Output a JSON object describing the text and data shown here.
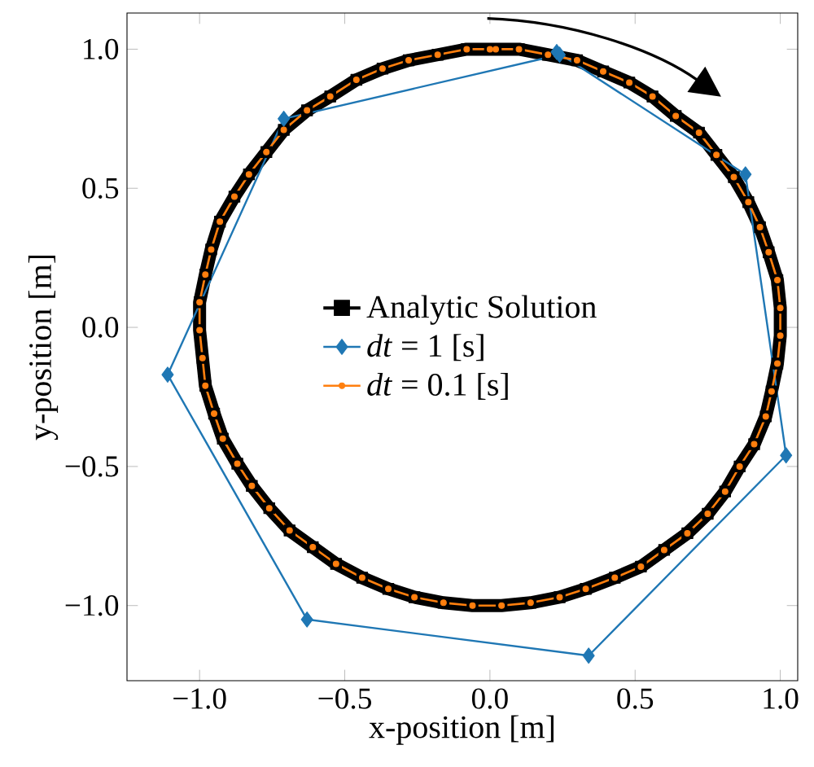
{
  "chart_data": {
    "type": "line",
    "xlabel": "x-position [m]",
    "ylabel": "y-position [m]",
    "xlim": [
      -1.25,
      1.06
    ],
    "ylim": [
      -1.27,
      1.13
    ],
    "xticks": [
      {
        "value": -1.0,
        "label": "−1.0"
      },
      {
        "value": -0.5,
        "label": "−0.5"
      },
      {
        "value": 0.0,
        "label": "0.0"
      },
      {
        "value": 0.5,
        "label": "0.5"
      },
      {
        "value": 1.0,
        "label": "1.0"
      }
    ],
    "yticks": [
      {
        "value": -1.0,
        "label": "−1.0"
      },
      {
        "value": -0.5,
        "label": "−0.5"
      },
      {
        "value": 0.0,
        "label": "0.0"
      },
      {
        "value": 0.5,
        "label": "0.5"
      },
      {
        "value": 1.0,
        "label": "1.0"
      }
    ],
    "grid": false,
    "legend": "left",
    "series": [
      {
        "name": "Analytic Solution",
        "color": "#000000",
        "marker": "square",
        "x": [
          0.0,
          0.1,
          0.2,
          0.3,
          0.39,
          0.48,
          0.56,
          0.64,
          0.72,
          0.78,
          0.84,
          0.89,
          0.93,
          0.96,
          0.99,
          1.0,
          1.0,
          0.99,
          0.97,
          0.95,
          0.91,
          0.86,
          0.81,
          0.75,
          0.68,
          0.6,
          0.52,
          0.43,
          0.33,
          0.24,
          0.14,
          0.04,
          -0.06,
          -0.16,
          -0.26,
          -0.35,
          -0.44,
          -0.53,
          -0.61,
          -0.69,
          -0.76,
          -0.82,
          -0.87,
          -0.92,
          -0.95,
          -0.98,
          -0.99,
          -1.0,
          -1.0,
          -0.98,
          -0.96,
          -0.93,
          -0.88,
          -0.83,
          -0.77,
          -0.71,
          -0.63,
          -0.55,
          -0.46,
          -0.37,
          -0.28,
          -0.18,
          -0.08,
          0.02
        ],
        "values": [
          1.0,
          1.0,
          0.98,
          0.96,
          0.92,
          0.88,
          0.83,
          0.76,
          0.7,
          0.62,
          0.54,
          0.45,
          0.36,
          0.27,
          0.17,
          0.07,
          -0.03,
          -0.13,
          -0.23,
          -0.32,
          -0.42,
          -0.5,
          -0.59,
          -0.67,
          -0.74,
          -0.8,
          -0.86,
          -0.9,
          -0.94,
          -0.97,
          -0.99,
          -1.0,
          -1.0,
          -0.99,
          -0.97,
          -0.94,
          -0.9,
          -0.85,
          -0.79,
          -0.73,
          -0.65,
          -0.57,
          -0.49,
          -0.4,
          -0.31,
          -0.21,
          -0.11,
          -0.01,
          0.09,
          0.19,
          0.28,
          0.38,
          0.47,
          0.55,
          0.63,
          0.71,
          0.78,
          0.83,
          0.89,
          0.93,
          0.96,
          0.98,
          1.0,
          1.0
        ]
      },
      {
        "name": "*dt* = 1 [s]",
        "color": "#1f77b4",
        "marker": "diamond",
        "x": [
          0.23,
          0.88,
          1.02,
          0.34,
          -0.63,
          -1.11,
          -0.71,
          0.24
        ],
        "values": [
          0.99,
          0.55,
          -0.46,
          -1.18,
          -1.05,
          -0.17,
          0.75,
          0.98
        ]
      },
      {
        "name": "*dt* = 0.1 [s]",
        "color": "#ff7f0e",
        "marker": "circle",
        "x": [
          0.0,
          0.1,
          0.2,
          0.3,
          0.39,
          0.48,
          0.56,
          0.64,
          0.72,
          0.78,
          0.84,
          0.89,
          0.93,
          0.96,
          0.99,
          1.0,
          1.0,
          0.99,
          0.97,
          0.95,
          0.91,
          0.86,
          0.81,
          0.75,
          0.68,
          0.6,
          0.52,
          0.43,
          0.33,
          0.24,
          0.14,
          0.04,
          -0.06,
          -0.16,
          -0.26,
          -0.35,
          -0.44,
          -0.53,
          -0.61,
          -0.69,
          -0.76,
          -0.82,
          -0.87,
          -0.92,
          -0.95,
          -0.98,
          -0.99,
          -1.0,
          -1.0,
          -0.98,
          -0.96,
          -0.93,
          -0.88,
          -0.83,
          -0.77,
          -0.71,
          -0.63,
          -0.55,
          -0.46,
          -0.37,
          -0.28,
          -0.18,
          -0.08,
          0.02
        ],
        "values": [
          1.0,
          1.0,
          0.98,
          0.96,
          0.92,
          0.88,
          0.83,
          0.76,
          0.7,
          0.62,
          0.54,
          0.45,
          0.36,
          0.27,
          0.17,
          0.07,
          -0.03,
          -0.13,
          -0.23,
          -0.32,
          -0.42,
          -0.5,
          -0.59,
          -0.67,
          -0.74,
          -0.8,
          -0.86,
          -0.9,
          -0.94,
          -0.97,
          -0.99,
          -1.0,
          -1.0,
          -0.99,
          -0.97,
          -0.94,
          -0.9,
          -0.85,
          -0.79,
          -0.73,
          -0.65,
          -0.57,
          -0.49,
          -0.4,
          -0.31,
          -0.21,
          -0.11,
          -0.01,
          0.09,
          0.19,
          0.28,
          0.38,
          0.47,
          0.55,
          0.63,
          0.71,
          0.78,
          0.83,
          0.89,
          0.93,
          0.96,
          0.98,
          1.0,
          1.0
        ]
      }
    ]
  }
}
